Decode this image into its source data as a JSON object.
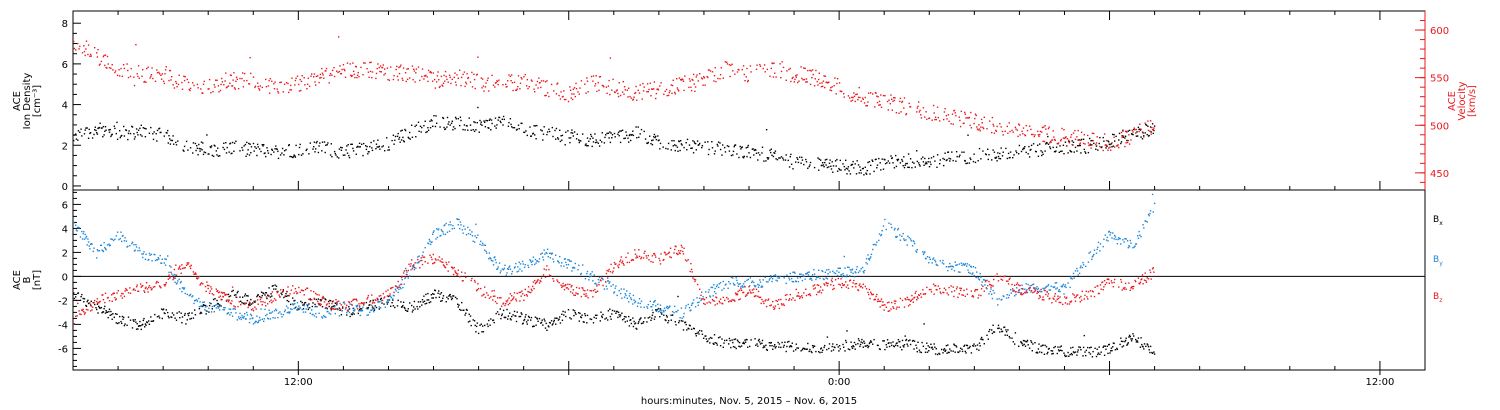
{
  "chart_data": [
    {
      "type": "scatter",
      "panel": "top",
      "ylabel_lines": [
        "ACE",
        "Ion Density",
        "[cm⁻³]"
      ],
      "ylim": [
        -0.2,
        8.6
      ],
      "yticks": [
        "0",
        "2",
        "4",
        "6",
        "8"
      ],
      "y2label_lines": [
        "ACE",
        "Velocity",
        "[km/s]"
      ],
      "y2lim": [
        432,
        620
      ],
      "y2ticks": [
        "450",
        "500",
        "550",
        "600"
      ],
      "x_range_hours": [
        7.0,
        37.0
      ],
      "data_extent_hours": [
        7.0,
        31.0
      ],
      "series": [
        {
          "name": "Density",
          "color": "#000000",
          "axis": "left",
          "points": [
            [
              7.0,
              2.4
            ],
            [
              7.5,
              2.8
            ],
            [
              8.0,
              2.6
            ],
            [
              8.5,
              2.7
            ],
            [
              9.0,
              2.5
            ],
            [
              9.5,
              2.0
            ],
            [
              10.0,
              1.8
            ],
            [
              10.5,
              1.9
            ],
            [
              11.0,
              1.8
            ],
            [
              11.5,
              1.7
            ],
            [
              12.0,
              1.8
            ],
            [
              12.5,
              1.9
            ],
            [
              13.0,
              1.7
            ],
            [
              13.5,
              1.9
            ],
            [
              14.0,
              2.1
            ],
            [
              14.5,
              2.7
            ],
            [
              15.0,
              3.2
            ],
            [
              15.5,
              3.1
            ],
            [
              16.0,
              3.0
            ],
            [
              16.5,
              3.2
            ],
            [
              17.0,
              2.8
            ],
            [
              17.5,
              2.6
            ],
            [
              18.0,
              2.5
            ],
            [
              18.5,
              2.3
            ],
            [
              19.0,
              2.4
            ],
            [
              19.5,
              2.6
            ],
            [
              20.0,
              2.2
            ],
            [
              20.5,
              2.0
            ],
            [
              21.0,
              1.9
            ],
            [
              21.5,
              1.8
            ],
            [
              22.0,
              1.7
            ],
            [
              22.5,
              1.5
            ],
            [
              23.0,
              1.2
            ],
            [
              23.5,
              1.1
            ],
            [
              24.0,
              1.0
            ],
            [
              24.5,
              0.9
            ],
            [
              25.0,
              1.1
            ],
            [
              25.5,
              1.3
            ],
            [
              26.0,
              1.2
            ],
            [
              26.5,
              1.4
            ],
            [
              27.0,
              1.5
            ],
            [
              27.5,
              1.6
            ],
            [
              28.0,
              1.7
            ],
            [
              28.5,
              1.8
            ],
            [
              29.0,
              1.9
            ],
            [
              29.5,
              2.0
            ],
            [
              30.0,
              2.2
            ],
            [
              30.5,
              2.6
            ],
            [
              31.0,
              2.8
            ]
          ]
        },
        {
          "name": "Velocity",
          "color": "#e8191e",
          "axis": "right",
          "points": [
            [
              7.0,
              590
            ],
            [
              7.5,
              575
            ],
            [
              8.0,
              560
            ],
            [
              8.5,
              555
            ],
            [
              9.0,
              552
            ],
            [
              9.5,
              545
            ],
            [
              10.0,
              542
            ],
            [
              10.5,
              548
            ],
            [
              11.0,
              546
            ],
            [
              11.5,
              540
            ],
            [
              12.0,
              545
            ],
            [
              12.5,
              552
            ],
            [
              13.0,
              558
            ],
            [
              13.5,
              560
            ],
            [
              14.0,
              555
            ],
            [
              14.5,
              556
            ],
            [
              15.0,
              548
            ],
            [
              15.5,
              550
            ],
            [
              16.0,
              546
            ],
            [
              16.5,
              543
            ],
            [
              17.0,
              548
            ],
            [
              17.5,
              540
            ],
            [
              18.0,
              532
            ],
            [
              18.5,
              545
            ],
            [
              19.0,
              540
            ],
            [
              19.5,
              535
            ],
            [
              20.0,
              538
            ],
            [
              20.5,
              543
            ],
            [
              21.0,
              548
            ],
            [
              21.5,
              560
            ],
            [
              22.0,
              555
            ],
            [
              22.5,
              558
            ],
            [
              23.0,
              555
            ],
            [
              23.5,
              550
            ],
            [
              24.0,
              540
            ],
            [
              24.5,
              530
            ],
            [
              25.0,
              525
            ],
            [
              25.5,
              520
            ],
            [
              26.0,
              515
            ],
            [
              26.5,
              510
            ],
            [
              27.0,
              505
            ],
            [
              27.5,
              500
            ],
            [
              28.0,
              495
            ],
            [
              28.5,
              492
            ],
            [
              29.0,
              488
            ],
            [
              29.5,
              485
            ],
            [
              30.0,
              482
            ],
            [
              30.5,
              490
            ],
            [
              31.0,
              500
            ]
          ]
        }
      ]
    },
    {
      "type": "scatter",
      "panel": "bottom",
      "ylabel_lines": [
        "ACE",
        "B",
        "[nT]"
      ],
      "ylim": [
        -7.8,
        7.2
      ],
      "yticks": [
        "-6",
        "-4",
        "-2",
        "0",
        "2",
        "4",
        "6"
      ],
      "zero_line": true,
      "x_range_hours": [
        7.0,
        37.0
      ],
      "xticks": [
        "12:00",
        "0:00",
        "12:00"
      ],
      "xlabel": "hours:minutes, Nov.  5, 2015 – Nov.  6, 2015",
      "legend": [
        {
          "label": "B",
          "subscript": "x",
          "color": "#000000"
        },
        {
          "label": "B",
          "subscript": "y",
          "color": "#1f87d8"
        },
        {
          "label": "B",
          "subscript": "z",
          "color": "#e8191e"
        }
      ],
      "series": [
        {
          "name": "Bx",
          "color": "#000000",
          "points": [
            [
              7.0,
              -1.5
            ],
            [
              7.5,
              -2.5
            ],
            [
              8.0,
              -3.5
            ],
            [
              8.5,
              -4.0
            ],
            [
              9.0,
              -3.0
            ],
            [
              9.5,
              -3.5
            ],
            [
              10.0,
              -2.5
            ],
            [
              10.5,
              -1.5
            ],
            [
              11.0,
              -2.0
            ],
            [
              11.5,
              -1.0
            ],
            [
              12.0,
              -2.5
            ],
            [
              12.5,
              -2.0
            ],
            [
              13.0,
              -3.0
            ],
            [
              13.5,
              -2.5
            ],
            [
              14.0,
              -2.0
            ],
            [
              14.5,
              -2.5
            ],
            [
              15.0,
              -1.5
            ],
            [
              15.5,
              -2.0
            ],
            [
              16.0,
              -4.5
            ],
            [
              16.5,
              -3.0
            ],
            [
              17.0,
              -3.5
            ],
            [
              17.5,
              -4.0
            ],
            [
              18.0,
              -3.0
            ],
            [
              18.5,
              -3.5
            ],
            [
              19.0,
              -3.0
            ],
            [
              19.5,
              -4.0
            ],
            [
              20.0,
              -3.0
            ],
            [
              20.5,
              -4.0
            ],
            [
              21.0,
              -5.0
            ],
            [
              21.5,
              -5.5
            ],
            [
              22.0,
              -5.5
            ],
            [
              22.5,
              -5.7
            ],
            [
              23.0,
              -5.8
            ],
            [
              23.5,
              -5.9
            ],
            [
              24.0,
              -5.8
            ],
            [
              24.5,
              -5.5
            ],
            [
              25.0,
              -5.6
            ],
            [
              25.5,
              -5.6
            ],
            [
              26.0,
              -6.0
            ],
            [
              26.5,
              -6.0
            ],
            [
              27.0,
              -6.0
            ],
            [
              27.5,
              -4.0
            ],
            [
              28.0,
              -5.5
            ],
            [
              28.5,
              -6.0
            ],
            [
              29.0,
              -6.2
            ],
            [
              29.5,
              -6.3
            ],
            [
              30.0,
              -6.0
            ],
            [
              30.5,
              -5.0
            ],
            [
              31.0,
              -6.2
            ]
          ]
        },
        {
          "name": "By",
          "color": "#1f87d8",
          "points": [
            [
              7.0,
              4.5
            ],
            [
              7.5,
              2.0
            ],
            [
              8.0,
              3.5
            ],
            [
              8.5,
              2.0
            ],
            [
              9.0,
              1.5
            ],
            [
              9.5,
              -1.5
            ],
            [
              10.0,
              -2.5
            ],
            [
              10.5,
              -3.0
            ],
            [
              11.0,
              -3.5
            ],
            [
              11.5,
              -3.0
            ],
            [
              12.0,
              -2.5
            ],
            [
              12.5,
              -3.0
            ],
            [
              13.0,
              -2.5
            ],
            [
              13.5,
              -3.0
            ],
            [
              14.0,
              -2.0
            ],
            [
              14.5,
              0.5
            ],
            [
              15.0,
              3.5
            ],
            [
              15.5,
              4.5
            ],
            [
              16.0,
              3.0
            ],
            [
              16.5,
              0.5
            ],
            [
              17.0,
              1.0
            ],
            [
              17.5,
              2.0
            ],
            [
              18.0,
              1.0
            ],
            [
              18.5,
              0.0
            ],
            [
              19.0,
              -1.0
            ],
            [
              19.5,
              -2.0
            ],
            [
              20.0,
              -2.5
            ],
            [
              20.5,
              -3.0
            ],
            [
              21.0,
              -1.5
            ],
            [
              21.5,
              -0.5
            ],
            [
              22.0,
              -0.5
            ],
            [
              22.5,
              -0.3
            ],
            [
              23.0,
              0.0
            ],
            [
              23.5,
              0.2
            ],
            [
              24.0,
              0.3
            ],
            [
              24.5,
              0.5
            ],
            [
              25.0,
              4.5
            ],
            [
              25.5,
              3.0
            ],
            [
              26.0,
              1.5
            ],
            [
              26.5,
              1.0
            ],
            [
              27.0,
              0.5
            ],
            [
              27.5,
              -2.0
            ],
            [
              28.0,
              -1.0
            ],
            [
              28.5,
              -0.8
            ],
            [
              29.0,
              -1.0
            ],
            [
              29.5,
              1.5
            ],
            [
              30.0,
              3.5
            ],
            [
              30.5,
              2.5
            ],
            [
              31.0,
              6.0
            ]
          ]
        },
        {
          "name": "Bz",
          "color": "#e8191e",
          "points": [
            [
              7.0,
              -3.5
            ],
            [
              7.5,
              -2.0
            ],
            [
              8.0,
              -1.5
            ],
            [
              8.5,
              -1.0
            ],
            [
              9.0,
              -0.5
            ],
            [
              9.5,
              1.0
            ],
            [
              10.0,
              -1.0
            ],
            [
              10.5,
              -2.0
            ],
            [
              11.0,
              -2.5
            ],
            [
              11.5,
              -1.5
            ],
            [
              12.0,
              -1.0
            ],
            [
              12.5,
              -2.0
            ],
            [
              13.0,
              -2.5
            ],
            [
              13.5,
              -2.0
            ],
            [
              14.0,
              -1.5
            ],
            [
              14.5,
              1.0
            ],
            [
              15.0,
              1.5
            ],
            [
              15.5,
              0.5
            ],
            [
              16.0,
              -1.0
            ],
            [
              16.5,
              -2.0
            ],
            [
              17.0,
              -1.5
            ],
            [
              17.5,
              0.5
            ],
            [
              18.0,
              -1.0
            ],
            [
              18.5,
              -1.5
            ],
            [
              19.0,
              1.0
            ],
            [
              19.5,
              2.0
            ],
            [
              20.0,
              1.5
            ],
            [
              20.5,
              2.5
            ],
            [
              21.0,
              -2.0
            ],
            [
              21.5,
              -2.0
            ],
            [
              22.0,
              -1.0
            ],
            [
              22.5,
              -2.5
            ],
            [
              23.0,
              -1.5
            ],
            [
              23.5,
              -1.0
            ],
            [
              24.0,
              -0.5
            ],
            [
              24.5,
              -0.8
            ],
            [
              25.0,
              -2.5
            ],
            [
              25.5,
              -2.0
            ],
            [
              26.0,
              -1.0
            ],
            [
              26.5,
              -1.2
            ],
            [
              27.0,
              -1.5
            ],
            [
              27.5,
              0.0
            ],
            [
              28.0,
              -1.0
            ],
            [
              28.5,
              -1.5
            ],
            [
              29.0,
              -2.0
            ],
            [
              29.5,
              -1.5
            ],
            [
              30.0,
              -0.5
            ],
            [
              30.5,
              -0.8
            ],
            [
              31.0,
              0.5
            ]
          ]
        }
      ]
    }
  ]
}
